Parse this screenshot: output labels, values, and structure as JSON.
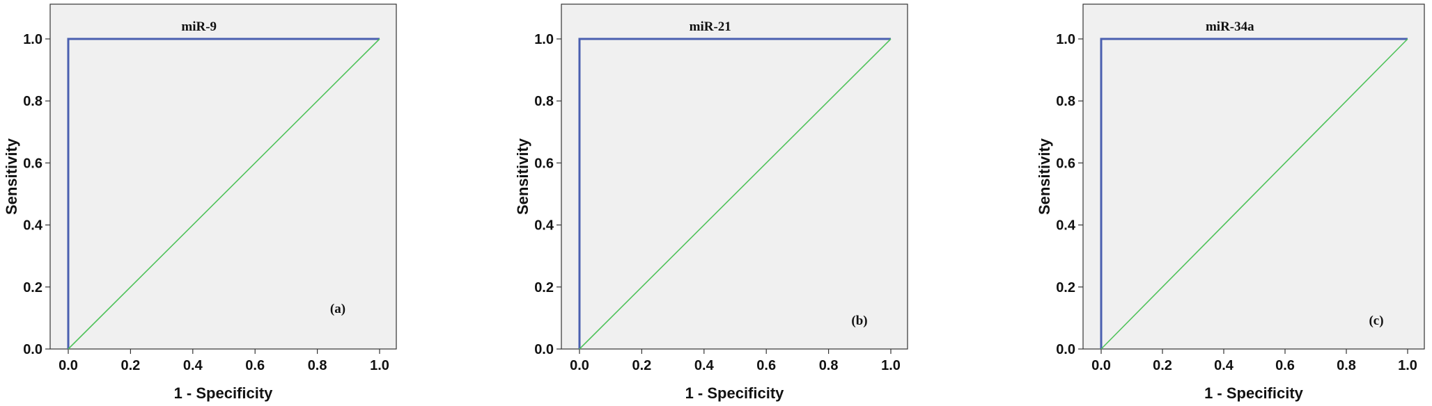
{
  "chart_data": [
    {
      "type": "line",
      "title": "miR-9",
      "panel_label": "(a)",
      "xlabel": "1 - Specificity",
      "ylabel": "Sensitivity",
      "xlim": [
        0,
        1
      ],
      "ylim": [
        0,
        1
      ],
      "xticks": [
        "0.0",
        "0.2",
        "0.4",
        "0.6",
        "0.8",
        "1.0"
      ],
      "yticks": [
        "0.0",
        "0.2",
        "0.4",
        "0.6",
        "0.8",
        "1.0"
      ],
      "grid": false,
      "series": [
        {
          "color": "#4a5fb0",
          "points": [
            [
              0,
              0
            ],
            [
              0,
              1
            ],
            [
              1,
              1
            ]
          ]
        },
        {
          "color": "#4fc25a",
          "points": [
            [
              0,
              0
            ],
            [
              1,
              1
            ]
          ]
        }
      ]
    },
    {
      "type": "line",
      "title": "miR-21",
      "panel_label": "(b)",
      "xlabel": "1 - Specificity",
      "ylabel": "Sensitivity",
      "xlim": [
        0,
        1
      ],
      "ylim": [
        0,
        1
      ],
      "xticks": [
        "0.0",
        "0.2",
        "0.4",
        "0.6",
        "0.8",
        "1.0"
      ],
      "yticks": [
        "0.0",
        "0.2",
        "0.4",
        "0.6",
        "0.8",
        "1.0"
      ],
      "grid": false,
      "series": [
        {
          "color": "#4a5fb0",
          "points": [
            [
              0,
              0
            ],
            [
              0,
              1
            ],
            [
              1,
              1
            ]
          ]
        },
        {
          "color": "#4fc25a",
          "points": [
            [
              0,
              0
            ],
            [
              1,
              1
            ]
          ]
        }
      ]
    },
    {
      "type": "line",
      "title": "miR-34a",
      "panel_label": "(c)",
      "xlabel": "1 - Specificity",
      "ylabel": "Sensitivity",
      "xlim": [
        0,
        1
      ],
      "ylim": [
        0,
        1
      ],
      "xticks": [
        "0.0",
        "0.2",
        "0.4",
        "0.6",
        "0.8",
        "1.0"
      ],
      "yticks": [
        "0.0",
        "0.2",
        "0.4",
        "0.6",
        "0.8",
        "1.0"
      ],
      "grid": false,
      "series": [
        {
          "color": "#4a5fb0",
          "points": [
            [
              0,
              0
            ],
            [
              0,
              1
            ],
            [
              1,
              1
            ]
          ]
        },
        {
          "color": "#4fc25a",
          "points": [
            [
              0,
              0
            ],
            [
              1,
              1
            ]
          ]
        }
      ]
    }
  ]
}
